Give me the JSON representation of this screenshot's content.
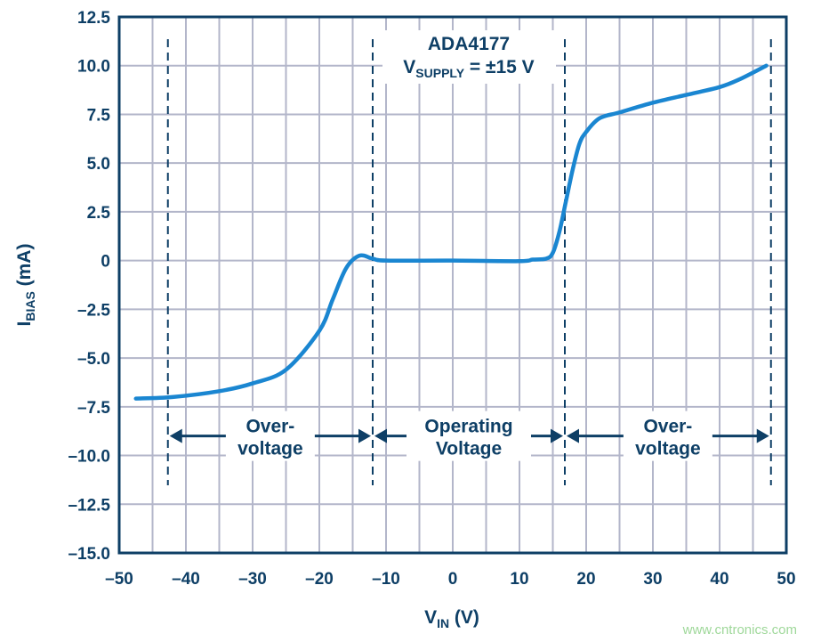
{
  "chart_data": {
    "type": "line",
    "title": "ADA4177",
    "subtitle": {
      "main": "V",
      "sub": "SUPPLY",
      "rest": " =  ±15 V"
    },
    "xlabel": {
      "main": "V",
      "sub": "IN",
      "rest": " (V)"
    },
    "ylabel": {
      "main": "I",
      "sub": "BIAS",
      "rest": " (mA)"
    },
    "xlim": [
      -50,
      50
    ],
    "ylim": [
      -15,
      12.5
    ],
    "xticks": [
      -50,
      -40,
      -30,
      -20,
      -10,
      0,
      10,
      20,
      30,
      40,
      50
    ],
    "xtick_labels": [
      "–50",
      "–40",
      "–30",
      "–20",
      "–10",
      "0",
      "10",
      "20",
      "30",
      "40",
      "50"
    ],
    "yticks": [
      12.5,
      10,
      7.5,
      5,
      2.5,
      0,
      -2.5,
      -5,
      -7.5,
      -10,
      -12.5,
      -15
    ],
    "ytick_labels": [
      "12.5",
      "10.0",
      "7.5",
      "5.0",
      "2.5",
      "0",
      "–2.5",
      "–5.0",
      "–7.5",
      "–10.0",
      "–12.5",
      "–15.0"
    ],
    "grid": {
      "x_step": 5,
      "y_step": 2.5,
      "on": true
    },
    "series": [
      {
        "x": [
          -47.5,
          -42,
          -35,
          -30,
          -25,
          -20,
          -18,
          -16,
          -14,
          -12,
          -10,
          0,
          10,
          12,
          14,
          15,
          16,
          17,
          18,
          19,
          20,
          22,
          25,
          30,
          35,
          40,
          43,
          47
        ],
        "y": [
          -7.08,
          -7.0,
          -6.7,
          -6.3,
          -5.6,
          -3.6,
          -2.0,
          -0.4,
          0.25,
          0.1,
          0,
          0,
          -0.03,
          0.05,
          0.1,
          0.4,
          1.5,
          3.1,
          4.7,
          6.0,
          6.6,
          7.3,
          7.6,
          8.1,
          8.5,
          8.9,
          9.3,
          10.0
        ]
      }
    ],
    "region_boundaries_v": [
      -42.7,
      -12,
      16.8,
      47.7
    ],
    "regions": [
      {
        "line1": "Over-",
        "line2": "voltage"
      },
      {
        "line1": "Operating",
        "line2": "Voltage"
      },
      {
        "line1": "Over-",
        "line2": "voltage"
      }
    ],
    "colors": {
      "axis": "#0e3f66",
      "grid": "#b3b6ca",
      "curve": "#1a86d1"
    }
  },
  "watermark": "www.cntronics.com"
}
